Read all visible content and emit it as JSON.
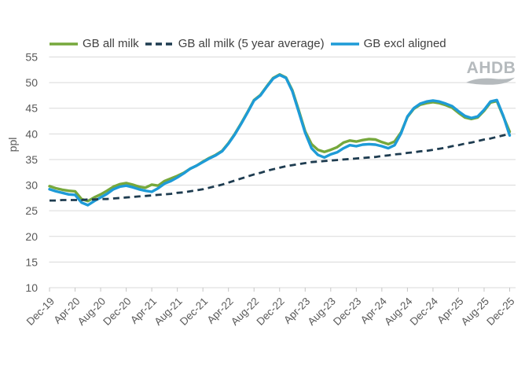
{
  "watermark": {
    "text": "AHDB"
  },
  "chart_data": {
    "type": "line",
    "title": "",
    "ylabel": "ppl",
    "xlabel": "",
    "ylim": [
      10,
      55
    ],
    "ytick_step": 5,
    "grid": "horizontal",
    "legend_position": "top",
    "x_unit": "monthly from Dec-19 to Dec-25",
    "x_tick_every_months": 4,
    "x_tick_labels": [
      "Dec-19",
      "Apr-20",
      "Aug-20",
      "Dec-20",
      "Apr-21",
      "Aug-21",
      "Dec-21",
      "Apr-22",
      "Aug-22",
      "Dec-22",
      "Apr-23",
      "Aug-23",
      "Dec-23",
      "Apr-24",
      "Aug-24",
      "Dec-24",
      "Apr-25",
      "Aug-25",
      "Dec-25"
    ],
    "series": [
      {
        "name": "GB all milk",
        "color": "#76a83c",
        "style": "solid",
        "values": [
          29.8,
          29.4,
          29.1,
          28.9,
          28.8,
          27.3,
          26.9,
          27.6,
          28.2,
          28.9,
          29.7,
          30.2,
          30.4,
          30.1,
          29.7,
          29.5,
          30.1,
          29.9,
          30.8,
          31.3,
          31.8,
          32.4,
          33.2,
          33.8,
          34.6,
          35.3,
          35.9,
          36.7,
          38.2,
          40.0,
          42.1,
          44.3,
          46.6,
          47.6,
          49.3,
          50.9,
          51.6,
          51.0,
          48.5,
          44.6,
          40.5,
          38.0,
          36.9,
          36.5,
          36.9,
          37.4,
          38.3,
          38.7,
          38.5,
          38.8,
          39.0,
          38.9,
          38.4,
          38.0,
          38.5,
          40.3,
          43.3,
          44.9,
          45.7,
          46.0,
          46.2,
          46.0,
          45.6,
          45.1,
          44.1,
          43.2,
          42.9,
          43.2,
          44.5,
          46.1,
          46.4,
          43.4,
          40.4
        ]
      },
      {
        "name": "GB all milk (5 year average)",
        "color": "#1e3c50",
        "style": "dashed",
        "values": [
          27.0,
          27.0,
          27.1,
          27.1,
          27.1,
          27.1,
          27.2,
          27.2,
          27.3,
          27.3,
          27.4,
          27.5,
          27.6,
          27.7,
          27.8,
          27.9,
          28.0,
          28.1,
          28.2,
          28.3,
          28.5,
          28.6,
          28.8,
          29.0,
          29.2,
          29.5,
          29.8,
          30.1,
          30.5,
          30.9,
          31.3,
          31.7,
          32.1,
          32.4,
          32.8,
          33.1,
          33.4,
          33.7,
          33.9,
          34.1,
          34.3,
          34.5,
          34.6,
          34.7,
          34.8,
          34.9,
          35.0,
          35.1,
          35.2,
          35.3,
          35.4,
          35.5,
          35.7,
          35.8,
          36.0,
          36.1,
          36.3,
          36.4,
          36.6,
          36.7,
          36.9,
          37.1,
          37.3,
          37.6,
          37.8,
          38.1,
          38.3,
          38.6,
          38.9,
          39.1,
          39.4,
          39.7,
          40.0
        ]
      },
      {
        "name": "GB excl aligned",
        "color": "#1e9bd7",
        "style": "solid",
        "values": [
          29.2,
          28.8,
          28.5,
          28.2,
          28.1,
          26.6,
          26.1,
          26.9,
          27.6,
          28.3,
          29.2,
          29.7,
          29.9,
          29.6,
          29.2,
          28.9,
          28.7,
          29.4,
          30.3,
          30.8,
          31.5,
          32.3,
          33.2,
          33.8,
          34.5,
          35.2,
          35.8,
          36.6,
          38.1,
          39.9,
          42.0,
          44.2,
          46.5,
          47.5,
          49.2,
          50.8,
          51.5,
          50.9,
          48.3,
          44.3,
          40.2,
          37.2,
          35.9,
          35.4,
          36.0,
          36.4,
          37.2,
          37.8,
          37.6,
          37.9,
          38.0,
          37.9,
          37.6,
          37.2,
          37.8,
          40.1,
          43.4,
          45.0,
          45.9,
          46.3,
          46.5,
          46.3,
          45.9,
          45.4,
          44.4,
          43.5,
          43.1,
          43.4,
          44.7,
          46.3,
          46.6,
          43.5,
          39.7
        ]
      }
    ],
    "style_hints": {
      "gridline_color": "#d9d9d9",
      "tick_color": "#c6c6c6",
      "axis_text_color": "#595959",
      "legend_text_color": "#404040",
      "watermark_color": "#b5babd"
    }
  }
}
